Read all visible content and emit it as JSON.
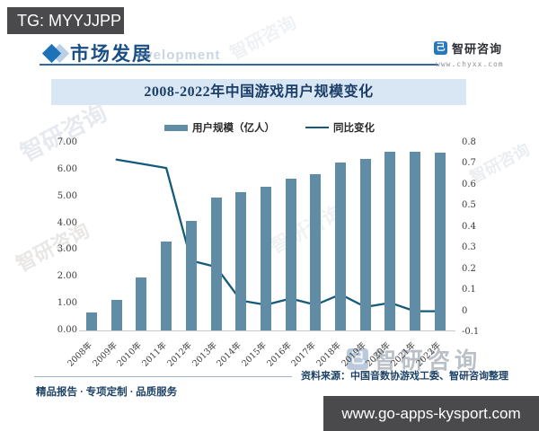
{
  "overlay": {
    "tg_label": "TG: MYYJJPP",
    "bottom_url": "www.go-apps-kysport.com"
  },
  "header": {
    "section_title": "市场发展",
    "ghost_text": "evelopment",
    "brand": {
      "glyph": "己",
      "name": "智研咨询",
      "website": "www.chyxx.com"
    }
  },
  "chart_data": {
    "type": "bar",
    "title": "2008-2022年中国游戏用户规模变化",
    "categories": [
      "2008年",
      "2009年",
      "2010年",
      "2011年",
      "2012年",
      "2013年",
      "2014年",
      "2015年",
      "2016年",
      "2017年",
      "2018年",
      "2019年",
      "2020年",
      "2021年",
      "2022年"
    ],
    "series": [
      {
        "name": "用户规模（亿人）",
        "type": "bar",
        "axis": "left",
        "color": "#608ca6",
        "values": [
          0.67,
          1.15,
          1.96,
          3.3,
          4.1,
          4.95,
          5.17,
          5.35,
          5.66,
          5.83,
          6.26,
          6.4,
          6.65,
          6.66,
          6.64
        ]
      },
      {
        "name": "同比变化",
        "type": "line",
        "axis": "right",
        "color": "#145a7a",
        "values": [
          null,
          0.72,
          0.7,
          0.68,
          0.24,
          0.21,
          0.05,
          0.03,
          0.06,
          0.03,
          0.08,
          0.02,
          0.04,
          0.0,
          0.0
        ]
      }
    ],
    "left_axis": {
      "min": 0,
      "max": 7,
      "ticks": [
        "7.00",
        "6.00",
        "5.00",
        "4.00",
        "3.00",
        "2.00",
        "1.00",
        "0.00"
      ]
    },
    "right_axis": {
      "min": -0.1,
      "max": 0.8,
      "ticks": [
        "0.8",
        "0.7",
        "0.6",
        "0.5",
        "0.4",
        "0.3",
        "0.2",
        "0.1",
        "0",
        "-0.1"
      ]
    },
    "legend_position": "top",
    "grid": false
  },
  "footer": {
    "source": "资料来源：中国音数协游戏工委、智研咨询整理",
    "services": "精品报告 · 专项定制 · 品质服务"
  },
  "watermark": {
    "brand": "智研咨询",
    "glyph": "己"
  }
}
